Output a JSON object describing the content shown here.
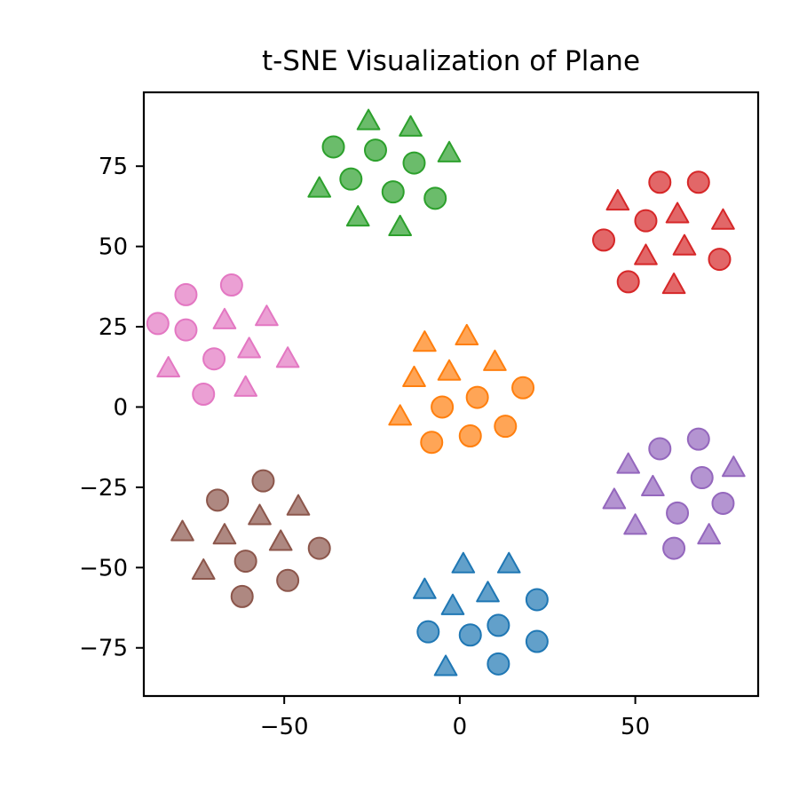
{
  "chart_data": {
    "type": "scatter",
    "title": "t-SNE Visualization of Plane",
    "xlabel": "",
    "ylabel": "",
    "xlim": [
      -90,
      85
    ],
    "ylim": [
      -90,
      98
    ],
    "xticks": [
      -50,
      0,
      50
    ],
    "yticks": [
      75,
      50,
      25,
      0,
      -25,
      -50,
      -75
    ],
    "tick_labels_x": [
      "−50",
      "0",
      "50"
    ],
    "tick_labels_y": [
      "75",
      "50",
      "25",
      "0",
      "−25",
      "−50",
      "−75"
    ],
    "grid": false,
    "legend": "none",
    "series": [
      {
        "color": "#2ca02c",
        "circles": [
          [
            -36,
            81
          ],
          [
            -24,
            80
          ],
          [
            -13,
            76
          ],
          [
            -31,
            71
          ],
          [
            -19,
            67
          ],
          [
            -7,
            65
          ]
        ],
        "triangles": [
          [
            -26,
            89
          ],
          [
            -14,
            87
          ],
          [
            -3,
            79
          ],
          [
            -40,
            68
          ],
          [
            -29,
            59
          ],
          [
            -17,
            56
          ]
        ]
      },
      {
        "color": "#d62728",
        "circles": [
          [
            57,
            70
          ],
          [
            68,
            70
          ],
          [
            53,
            58
          ],
          [
            41,
            52
          ],
          [
            74,
            46
          ],
          [
            48,
            39
          ]
        ],
        "triangles": [
          [
            45,
            64
          ],
          [
            62,
            60
          ],
          [
            75,
            58
          ],
          [
            64,
            50
          ],
          [
            53,
            47
          ],
          [
            61,
            38
          ]
        ]
      },
      {
        "color": "#e377c2",
        "circles": [
          [
            -65,
            38
          ],
          [
            -78,
            35
          ],
          [
            -86,
            26
          ],
          [
            -78,
            24
          ],
          [
            -70,
            15
          ],
          [
            -73,
            4
          ]
        ],
        "triangles": [
          [
            -55,
            28
          ],
          [
            -67,
            27
          ],
          [
            -60,
            18
          ],
          [
            -49,
            15
          ],
          [
            -83,
            12
          ],
          [
            -61,
            6
          ]
        ]
      },
      {
        "color": "#ff7f0e",
        "circles": [
          [
            18,
            6
          ],
          [
            5,
            3
          ],
          [
            -5,
            0
          ],
          [
            13,
            -6
          ],
          [
            3,
            -9
          ],
          [
            -8,
            -11
          ]
        ],
        "triangles": [
          [
            2,
            22
          ],
          [
            -10,
            20
          ],
          [
            10,
            14
          ],
          [
            -3,
            11
          ],
          [
            -13,
            9
          ],
          [
            -17,
            -3
          ]
        ]
      },
      {
        "color": "#9467bd",
        "circles": [
          [
            68,
            -10
          ],
          [
            57,
            -13
          ],
          [
            69,
            -22
          ],
          [
            75,
            -30
          ],
          [
            62,
            -33
          ],
          [
            61,
            -44
          ]
        ],
        "triangles": [
          [
            78,
            -19
          ],
          [
            48,
            -18
          ],
          [
            55,
            -25
          ],
          [
            44,
            -29
          ],
          [
            50,
            -37
          ],
          [
            71,
            -40
          ]
        ]
      },
      {
        "color": "#8c564b",
        "circles": [
          [
            -56,
            -23
          ],
          [
            -69,
            -29
          ],
          [
            -40,
            -44
          ],
          [
            -61,
            -48
          ],
          [
            -49,
            -54
          ],
          [
            -62,
            -59
          ]
        ],
        "triangles": [
          [
            -46,
            -31
          ],
          [
            -57,
            -34
          ],
          [
            -79,
            -39
          ],
          [
            -67,
            -40
          ],
          [
            -51,
            -42
          ],
          [
            -73,
            -51
          ]
        ]
      },
      {
        "color": "#1f77b4",
        "circles": [
          [
            22,
            -60
          ],
          [
            11,
            -68
          ],
          [
            -9,
            -70
          ],
          [
            3,
            -71
          ],
          [
            22,
            -73
          ],
          [
            11,
            -80
          ]
        ],
        "triangles": [
          [
            1,
            -49
          ],
          [
            14,
            -49
          ],
          [
            -10,
            -57
          ],
          [
            8,
            -58
          ],
          [
            -2,
            -62
          ],
          [
            -4,
            -81
          ]
        ]
      }
    ]
  }
}
